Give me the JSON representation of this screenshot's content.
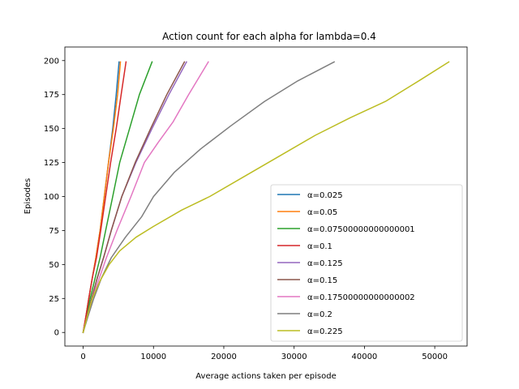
{
  "chart_data": {
    "type": "line",
    "title": "Action count for each alpha for lambda=0.4",
    "xlabel": "Average actions taken per episode",
    "ylabel": "Episodes",
    "xlim": [
      -2600,
      54600
    ],
    "ylim": [
      -10,
      210
    ],
    "xticks": [
      0,
      10000,
      20000,
      30000,
      40000,
      50000
    ],
    "yticks": [
      0,
      25,
      50,
      75,
      100,
      125,
      150,
      175,
      200
    ],
    "grid": false,
    "legend_position": "lower-right",
    "series": [
      {
        "name": "α=0.025",
        "color": "#1f77b4",
        "points": [
          [
            0,
            0
          ],
          [
            400,
            12
          ],
          [
            800,
            25
          ],
          [
            1300,
            40
          ],
          [
            1800,
            55
          ],
          [
            2400,
            75
          ],
          [
            3000,
            100
          ],
          [
            3600,
            125
          ],
          [
            4200,
            150
          ],
          [
            4700,
            175
          ],
          [
            5100,
            199
          ]
        ]
      },
      {
        "name": "α=0.05",
        "color": "#ff7f0e",
        "points": [
          [
            0,
            0
          ],
          [
            400,
            12
          ],
          [
            800,
            25
          ],
          [
            1300,
            40
          ],
          [
            1800,
            55
          ],
          [
            2400,
            75
          ],
          [
            3000,
            100
          ],
          [
            3600,
            125
          ],
          [
            4300,
            150
          ],
          [
            4900,
            175
          ],
          [
            5300,
            199
          ]
        ]
      },
      {
        "name": "α=0.07500000000000001",
        "color": "#2ca02c",
        "points": [
          [
            0,
            0
          ],
          [
            500,
            12
          ],
          [
            1000,
            25
          ],
          [
            1700,
            40
          ],
          [
            2400,
            55
          ],
          [
            3200,
            75
          ],
          [
            4200,
            100
          ],
          [
            5200,
            125
          ],
          [
            6600,
            150
          ],
          [
            8000,
            175
          ],
          [
            9800,
            199
          ]
        ]
      },
      {
        "name": "α=0.1",
        "color": "#d62728",
        "points": [
          [
            0,
            0
          ],
          [
            400,
            12
          ],
          [
            800,
            25
          ],
          [
            1300,
            40
          ],
          [
            1900,
            55
          ],
          [
            2500,
            75
          ],
          [
            3200,
            100
          ],
          [
            3900,
            125
          ],
          [
            4700,
            150
          ],
          [
            5400,
            175
          ],
          [
            6100,
            199
          ]
        ]
      },
      {
        "name": "α=0.125",
        "color": "#9467bd",
        "points": [
          [
            0,
            0
          ],
          [
            600,
            12
          ],
          [
            1200,
            25
          ],
          [
            2000,
            40
          ],
          [
            2900,
            55
          ],
          [
            4000,
            75
          ],
          [
            5500,
            100
          ],
          [
            7500,
            125
          ],
          [
            9800,
            150
          ],
          [
            12200,
            175
          ],
          [
            14700,
            199
          ]
        ]
      },
      {
        "name": "α=0.15",
        "color": "#8c564b",
        "points": [
          [
            0,
            0
          ],
          [
            600,
            12
          ],
          [
            1200,
            25
          ],
          [
            2000,
            40
          ],
          [
            2900,
            55
          ],
          [
            4000,
            75
          ],
          [
            5500,
            100
          ],
          [
            7400,
            125
          ],
          [
            9600,
            150
          ],
          [
            11900,
            175
          ],
          [
            14400,
            199
          ]
        ]
      },
      {
        "name": "α=0.17500000000000002",
        "color": "#e377c2",
        "points": [
          [
            0,
            0
          ],
          [
            600,
            12
          ],
          [
            1300,
            25
          ],
          [
            2300,
            40
          ],
          [
            3300,
            55
          ],
          [
            4800,
            75
          ],
          [
            6800,
            100
          ],
          [
            8700,
            125
          ],
          [
            10700,
            140
          ],
          [
            12800,
            155
          ],
          [
            15000,
            175
          ],
          [
            17800,
            199
          ]
        ]
      },
      {
        "name": "α=0.2",
        "color": "#7f7f7f",
        "points": [
          [
            0,
            0
          ],
          [
            700,
            12
          ],
          [
            1500,
            25
          ],
          [
            2600,
            40
          ],
          [
            4000,
            55
          ],
          [
            6000,
            70
          ],
          [
            8300,
            85
          ],
          [
            10000,
            100
          ],
          [
            13000,
            118
          ],
          [
            16700,
            135
          ],
          [
            21000,
            152
          ],
          [
            25800,
            170
          ],
          [
            30500,
            185
          ],
          [
            35700,
            199
          ]
        ]
      },
      {
        "name": "α=0.225",
        "color": "#bcbd22",
        "points": [
          [
            0,
            0
          ],
          [
            600,
            12
          ],
          [
            1300,
            25
          ],
          [
            2400,
            38
          ],
          [
            3700,
            50
          ],
          [
            5200,
            60
          ],
          [
            7500,
            70
          ],
          [
            10000,
            78
          ],
          [
            14000,
            90
          ],
          [
            18000,
            100
          ],
          [
            23000,
            115
          ],
          [
            28000,
            130
          ],
          [
            33000,
            145
          ],
          [
            38000,
            158
          ],
          [
            43000,
            170
          ],
          [
            48000,
            186
          ],
          [
            52000,
            199
          ]
        ]
      }
    ]
  }
}
